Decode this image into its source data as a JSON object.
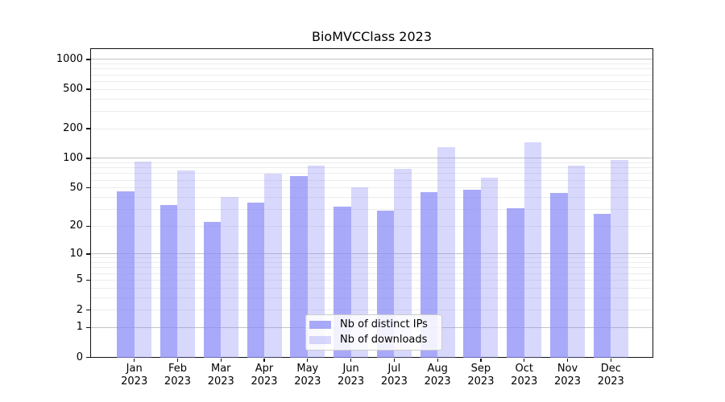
{
  "chart_data": {
    "type": "bar",
    "title": "BioMVCClass 2023",
    "categories": [
      "Jan",
      "Feb",
      "Mar",
      "Apr",
      "May",
      "Jun",
      "Jul",
      "Aug",
      "Sep",
      "Oct",
      "Nov",
      "Dec"
    ],
    "year_label": "2023",
    "series": [
      {
        "name": "Nb of distinct IPs",
        "color": "rgba(140,140,247,0.75)",
        "solid_color": "#a9a9f9",
        "values": [
          46,
          33,
          22,
          35,
          66,
          32,
          29,
          45,
          48,
          31,
          44,
          27
        ]
      },
      {
        "name": "Nb of downloads",
        "color": "rgba(140,140,247,0.34)",
        "solid_color": "#d8d8fc",
        "values": [
          93,
          76,
          40,
          70,
          85,
          51,
          78,
          130,
          64,
          145,
          84,
          97
        ]
      }
    ],
    "base_color": "#8c8cf7",
    "yscale": "log1p",
    "yticks": [
      0,
      1,
      2,
      5,
      10,
      20,
      50,
      100,
      200,
      500,
      1000
    ],
    "ylim": [
      0,
      1273
    ],
    "grid": {
      "major_at": [
        1,
        10,
        100,
        1000
      ],
      "minor_decades": [
        1,
        10,
        100
      ]
    },
    "legend_position": "lower-center",
    "xlabel": "",
    "ylabel": ""
  }
}
